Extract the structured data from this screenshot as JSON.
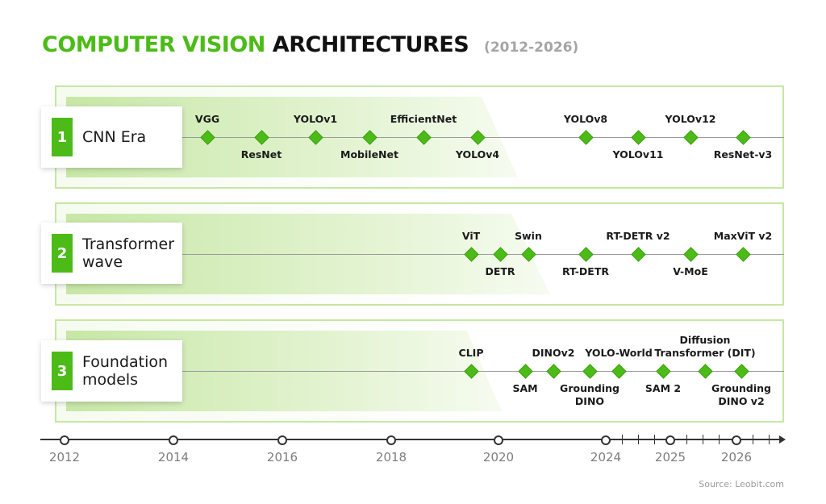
{
  "title": {
    "accent": "COMPUTER VISION",
    "main": "ARCHITECTURES",
    "years": "(2012-2026)"
  },
  "colors": {
    "accent": "#4cbb17",
    "panel_border": "#c6e7a3",
    "text": "#1a1a1a",
    "muted": "#7d7d7d"
  },
  "icons": {
    "milestone": "green-diamond-icon",
    "year_marker": "circle-icon"
  },
  "eras": [
    {
      "number": "1",
      "label": "CNN Era",
      "milestones": [
        {
          "name": "VGG",
          "position": "above"
        },
        {
          "name": "ResNet",
          "position": "below"
        },
        {
          "name": "YOLOv1",
          "position": "above"
        },
        {
          "name": "MobileNet",
          "position": "below"
        },
        {
          "name": "EfficientNet",
          "position": "above"
        },
        {
          "name": "YOLOv4",
          "position": "below"
        },
        {
          "name": "YOLOv8",
          "position": "above"
        },
        {
          "name": "YOLOv11",
          "position": "below"
        },
        {
          "name": "YOLOv12",
          "position": "above"
        },
        {
          "name": "ResNet-v3",
          "position": "below"
        }
      ]
    },
    {
      "number": "2",
      "label": "Transformer\nwave",
      "milestones": [
        {
          "name": "ViT",
          "position": "above"
        },
        {
          "name": "DETR",
          "position": "below"
        },
        {
          "name": "Swin",
          "position": "above"
        },
        {
          "name": "RT-DETR",
          "position": "below"
        },
        {
          "name": "RT-DETR v2",
          "position": "above"
        },
        {
          "name": "V-MoE",
          "position": "below"
        },
        {
          "name": "MaxViT v2",
          "position": "above"
        }
      ]
    },
    {
      "number": "3",
      "label": "Foundation\nmodels",
      "milestones": [
        {
          "name": "CLIP",
          "position": "above"
        },
        {
          "name": "SAM",
          "position": "below"
        },
        {
          "name": "DINOv2",
          "position": "above"
        },
        {
          "name": "Grounding\nDINO",
          "position": "below"
        },
        {
          "name": "YOLO-World",
          "position": "above"
        },
        {
          "name": "SAM 2",
          "position": "below"
        },
        {
          "name": "Diffusion\nTransformer (DIT)",
          "position": "above"
        },
        {
          "name": "Grounding\nDINO v2",
          "position": "below"
        }
      ]
    }
  ],
  "timeline": {
    "years": [
      "2012",
      "2014",
      "2016",
      "2018",
      "2020",
      "2024",
      "2025",
      "2026"
    ]
  },
  "source": "Source: Leobit.com"
}
